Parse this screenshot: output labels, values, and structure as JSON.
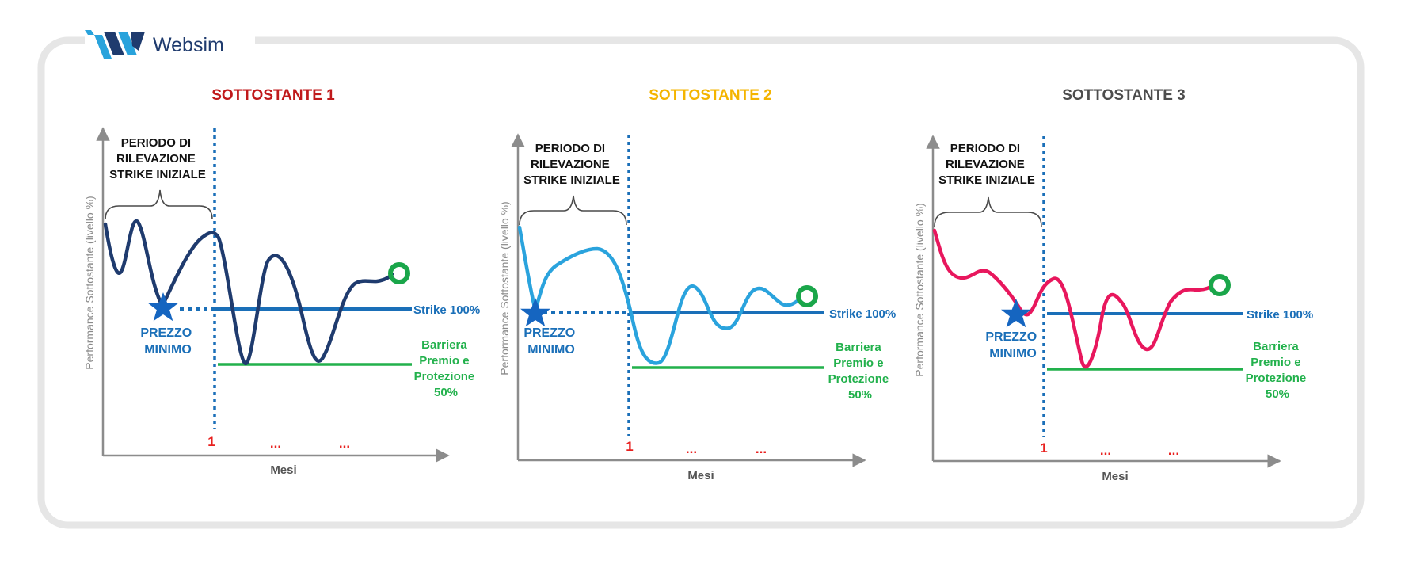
{
  "brand": {
    "name": "Websim"
  },
  "colors": {
    "frame": "#e6e6e6",
    "axis": "#8c8c8c",
    "axis_label": "#8a8a8a",
    "strike": "#1a6fb8",
    "barrier": "#22b14c",
    "month": "#e8201e",
    "star": "#1565c0",
    "end_marker": "#1aa64a",
    "brace": "#4a4a4a",
    "logo_dark": "#1f3b6e",
    "logo_light": "#29a3dc"
  },
  "panels": [
    {
      "title": "SOTTOSTANTE 1",
      "title_color": "#c0191b",
      "line_color": "#1f3b6e",
      "period_label": [
        "PERIODO DI",
        "RILEVAZIONE",
        "STRIKE INIZIALE"
      ],
      "min_label": [
        "PREZZO",
        "MINIMO"
      ],
      "strike_label": "Strike 100%",
      "barrier_label": [
        "Barriera",
        "Premio e",
        "Protezione",
        "50%"
      ],
      "months": [
        "1",
        "...",
        "..."
      ],
      "x_axis_label": "Mesi",
      "y_axis_label": "Performance Sottostante (livello %)"
    },
    {
      "title": "SOTTOSTANTE 2",
      "title_color": "#f4b400",
      "line_color": "#2aa3dd",
      "period_label": [
        "PERIODO DI",
        "RILEVAZIONE",
        "STRIKE INIZIALE"
      ],
      "min_label": [
        "PREZZO",
        "MINIMO"
      ],
      "strike_label": "Strike 100%",
      "barrier_label": [
        "Barriera",
        "Premio e",
        "Protezione",
        "50%"
      ],
      "months": [
        "1",
        "...",
        "..."
      ],
      "x_axis_label": "Mesi",
      "y_axis_label": "Performance Sottostante (livello %)"
    },
    {
      "title": "SOTTOSTANTE 3",
      "title_color": "#4d4d4d",
      "line_color": "#e8175d",
      "period_label": [
        "PERIODO DI",
        "RILEVAZIONE",
        "STRIKE INIZIALE"
      ],
      "min_label": [
        "PREZZO",
        "MINIMO"
      ],
      "strike_label": "Strike 100%",
      "barrier_label": [
        "Barriera",
        "Premio e",
        "Protezione",
        "50%"
      ],
      "months": [
        "1",
        "...",
        "..."
      ],
      "x_axis_label": "Mesi",
      "y_axis_label": "Performance Sottostante (livello %)"
    }
  ]
}
